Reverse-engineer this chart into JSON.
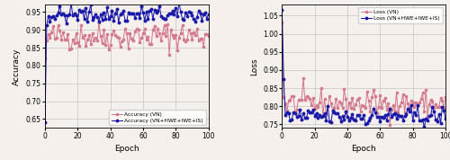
{
  "left_xlabel": "Epoch",
  "left_ylabel": "Accuracy",
  "right_xlabel": "Epoch",
  "right_ylabel": "Loss",
  "left_xlim": [
    0,
    100
  ],
  "left_ylim": [
    0.625,
    0.97
  ],
  "right_xlim": [
    0,
    100
  ],
  "right_ylim": [
    0.74,
    1.08
  ],
  "left_yticks": [
    0.65,
    0.7,
    0.75,
    0.8,
    0.85,
    0.9,
    0.95
  ],
  "right_yticks": [
    0.75,
    0.8,
    0.85,
    0.9,
    0.95,
    1.0,
    1.05
  ],
  "xticks": [
    0,
    20,
    40,
    60,
    80,
    100
  ],
  "vn_color": "#d47a8f",
  "vn_plus_color": "#1a1aaa",
  "legend_left": [
    "Accuracy (VN)",
    "Accuracy (VN+HWE+IWE+IS)"
  ],
  "legend_right": [
    "Loss (VN)",
    "Loss (VN+HWE+IWE+IS)"
  ],
  "bg_color": "#f5f0eb",
  "seed": 42
}
